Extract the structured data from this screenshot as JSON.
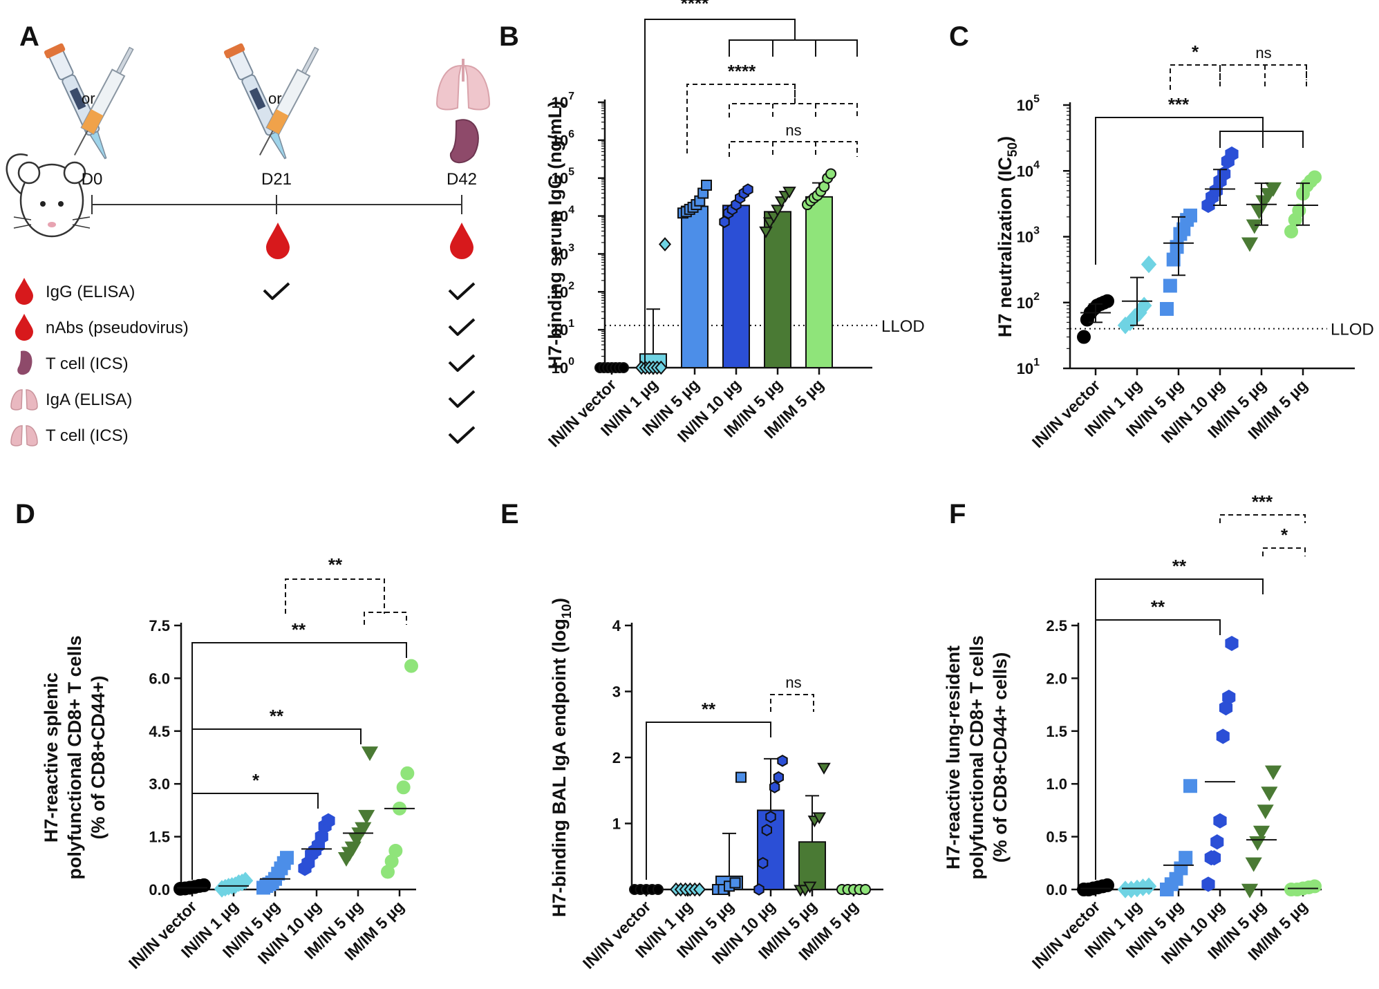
{
  "panel_labels": {
    "a": "A",
    "b": "B",
    "c": "C",
    "d": "D",
    "e": "E",
    "f": "F"
  },
  "schematic": {
    "or": "or",
    "days": [
      "D0",
      "D21",
      "D42"
    ],
    "assays": [
      {
        "icon": "blood-drop",
        "label": "IgG (ELISA)",
        "checks": [
          false,
          true,
          true
        ]
      },
      {
        "icon": "blood-drop",
        "label": "nAbs (pseudovirus)",
        "checks": [
          false,
          false,
          true
        ]
      },
      {
        "icon": "spleen",
        "label": "T cell (ICS)",
        "checks": [
          false,
          false,
          true
        ]
      },
      {
        "icon": "lung",
        "label": "IgA (ELISA)",
        "checks": [
          false,
          false,
          true
        ]
      },
      {
        "icon": "lung",
        "label": "T cell (ICS)",
        "checks": [
          false,
          false,
          true
        ]
      }
    ],
    "colors": {
      "blood": "#d7191c",
      "spleen": "#8e4a6a",
      "lung": "#e9b8c0"
    }
  },
  "groups": [
    "IN/IN vector",
    "IN/IN 1 µg",
    "IN/IN 5 µg",
    "IN/IN 10 µg",
    "IM/IN 5 µg",
    "IM/IM 5 µg"
  ],
  "group_colors": [
    "#000000",
    "#6fd3e3",
    "#4c8ee8",
    "#2b4fd6",
    "#4a7a34",
    "#8fe47a"
  ],
  "llod_label": "LLOD",
  "chart_data": [
    {
      "id": "B",
      "type": "bar",
      "title": "",
      "ylabel": "H7-binding serum IgG (ng/mL)",
      "yscale": "log",
      "ylim": [
        1,
        10000000
      ],
      "yticks": [
        {
          "b": "10",
          "e": "0"
        },
        {
          "b": "10",
          "e": "1"
        },
        {
          "b": "10",
          "e": "2"
        },
        {
          "b": "10",
          "e": "3"
        },
        {
          "b": "10",
          "e": "4"
        },
        {
          "b": "10",
          "e": "5"
        },
        {
          "b": "10",
          "e": "6"
        },
        {
          "b": "10",
          "e": "7"
        }
      ],
      "llod": 13,
      "bars": [
        1,
        2.3,
        18000,
        19000,
        13000,
        32000
      ],
      "errors": [
        0,
        35,
        0,
        0,
        0,
        75000
      ],
      "points": [
        [
          1,
          1,
          1,
          1,
          1,
          1,
          1
        ],
        [
          1,
          1,
          1,
          1,
          1,
          1,
          1800
        ],
        [
          12000,
          13000,
          15000,
          17000,
          20000,
          25000,
          40000,
          65000
        ],
        [
          7000,
          12000,
          15000,
          20000,
          30000,
          40000,
          50000
        ],
        [
          4000,
          7000,
          10000,
          15000,
          25000,
          35000,
          45000
        ],
        [
          20000,
          25000,
          30000,
          35000,
          45000,
          60000,
          100000,
          130000
        ]
      ],
      "markers": [
        "circle",
        "diamond",
        "square",
        "hexagon",
        "triangle",
        "circle"
      ],
      "significance": [
        {
          "label": "****",
          "style": "solid"
        },
        {
          "label": "****",
          "style": "dashed"
        },
        {
          "label": "ns",
          "style": "dashed"
        }
      ]
    },
    {
      "id": "C",
      "type": "scatter",
      "title": "",
      "ylabel": "H7 neutralization (IC50)",
      "yscale": "log",
      "ylim": [
        10,
        100000
      ],
      "yticks": [
        {
          "b": "10",
          "e": "1"
        },
        {
          "b": "10",
          "e": "2"
        },
        {
          "b": "10",
          "e": "3"
        },
        {
          "b": "10",
          "e": "4"
        },
        {
          "b": "10",
          "e": "5"
        }
      ],
      "llod": 40,
      "means": [
        70,
        105,
        800,
        5300,
        3100,
        3000
      ],
      "sd_low": [
        50,
        45,
        260,
        3000,
        1500,
        1500
      ],
      "sd_high": [
        95,
        240,
        2000,
        10500,
        6500,
        6500
      ],
      "points": [
        [
          30,
          55,
          70,
          80,
          90,
          95,
          100,
          105
        ],
        [
          45,
          50,
          60,
          70,
          90,
          380
        ],
        [
          80,
          180,
          450,
          700,
          1100,
          1300,
          1800,
          2100
        ],
        [
          3000,
          4000,
          5000,
          7000,
          9000,
          14000,
          18000
        ],
        [
          800,
          1500,
          2500,
          3500,
          4500,
          5500
        ],
        [
          1200,
          1800,
          2500,
          4500,
          6000,
          7000,
          8000
        ]
      ],
      "markers": [
        "circle",
        "diamond",
        "square",
        "hexagon",
        "triangle",
        "circle"
      ],
      "significance": [
        {
          "label": "*",
          "style": "dashed"
        },
        {
          "label": "ns",
          "style": "dashed"
        },
        {
          "label": "***",
          "style": "solid"
        }
      ]
    },
    {
      "id": "D",
      "type": "scatter",
      "title": "",
      "ylabel": "H7-reactive splenic polyfunctional CD8+ T cells (% of CD8+CD44+)",
      "ylim": [
        0,
        7.5
      ],
      "yticks": [
        "0.0",
        "1.5",
        "3.0",
        "4.5",
        "6.0",
        "7.5"
      ],
      "means": [
        0.05,
        0.1,
        0.3,
        1.15,
        1.6,
        2.3
      ],
      "points": [
        [
          0.02,
          0.03,
          0.05,
          0.07,
          0.1,
          0.12
        ],
        [
          0.02,
          0.05,
          0.08,
          0.1,
          0.12,
          0.18,
          0.2,
          0.25
        ],
        [
          0.05,
          0.1,
          0.15,
          0.2,
          0.3,
          0.45,
          0.6,
          0.75,
          0.9
        ],
        [
          0.6,
          0.75,
          1.0,
          1.1,
          1.25,
          1.5,
          1.8,
          1.95
        ],
        [
          0.9,
          1.05,
          1.2,
          1.45,
          1.6,
          1.75,
          2.1,
          3.9
        ],
        [
          0.5,
          0.8,
          1.1,
          2.3,
          2.9,
          3.3,
          6.35
        ]
      ],
      "markers": [
        "circle",
        "diamond",
        "square",
        "hexagon",
        "triangle",
        "circle"
      ],
      "significance": [
        {
          "label": "**",
          "style": "dashed"
        },
        {
          "label": "**",
          "style": "solid"
        },
        {
          "label": "**",
          "style": "solid"
        },
        {
          "label": "*",
          "style": "solid"
        }
      ]
    },
    {
      "id": "E",
      "type": "bar",
      "title": "",
      "ylabel": "H7-binding BAL IgA endpoint (log10)",
      "ylim": [
        0,
        4
      ],
      "yticks": [
        "1",
        "2",
        "3",
        "4"
      ],
      "bars": [
        0,
        0,
        0.2,
        1.2,
        0.72,
        0
      ],
      "errors": [
        0,
        0,
        0.65,
        0.78,
        0.7,
        0
      ],
      "points": [
        [
          0,
          0,
          0,
          0,
          0
        ],
        [
          0,
          0,
          0,
          0,
          0,
          0
        ],
        [
          0,
          0,
          0.05,
          0.1,
          1.7
        ],
        [
          0,
          0.4,
          0.9,
          1.1,
          1.55,
          1.7,
          1.95
        ],
        [
          0,
          0,
          0.05,
          1.05,
          1.1,
          1.85
        ],
        [
          0,
          0,
          0,
          0,
          0
        ]
      ],
      "markers": [
        "circle",
        "diamond",
        "square",
        "hexagon",
        "triangle",
        "circle"
      ],
      "significance": [
        {
          "label": "**",
          "style": "solid"
        },
        {
          "label": "ns",
          "style": "dashed"
        }
      ]
    },
    {
      "id": "F",
      "type": "scatter",
      "title": "",
      "ylabel": "H7-reactive lung-resident polyfunctional CD8+ T cells (% of CD8+CD44+ cells)",
      "ylim": [
        0,
        2.5
      ],
      "yticks": [
        "0.0",
        "0.5",
        "1.0",
        "1.5",
        "2.0",
        "2.5"
      ],
      "means": [
        0.01,
        0.01,
        0.23,
        1.02,
        0.47,
        0.01
      ],
      "points": [
        [
          0,
          0,
          0.01,
          0.02,
          0.03,
          0.04
        ],
        [
          0,
          0,
          0.01,
          0.02,
          0.03
        ],
        [
          0,
          0.05,
          0.1,
          0.2,
          0.3,
          0.98
        ],
        [
          0.05,
          0.3,
          0.3,
          0.45,
          0.65,
          1.45,
          1.72,
          1.82,
          2.33
        ],
        [
          0,
          0.25,
          0.45,
          0.55,
          0.75,
          0.92,
          1.12
        ],
        [
          0,
          0,
          0.01,
          0.02,
          0.03
        ]
      ],
      "markers": [
        "circle",
        "diamond",
        "square",
        "hexagon",
        "triangle",
        "circle"
      ],
      "significance": [
        {
          "label": "***",
          "style": "dashed"
        },
        {
          "label": "*",
          "style": "dashed"
        },
        {
          "label": "**",
          "style": "solid"
        },
        {
          "label": "**",
          "style": "solid"
        }
      ]
    }
  ]
}
